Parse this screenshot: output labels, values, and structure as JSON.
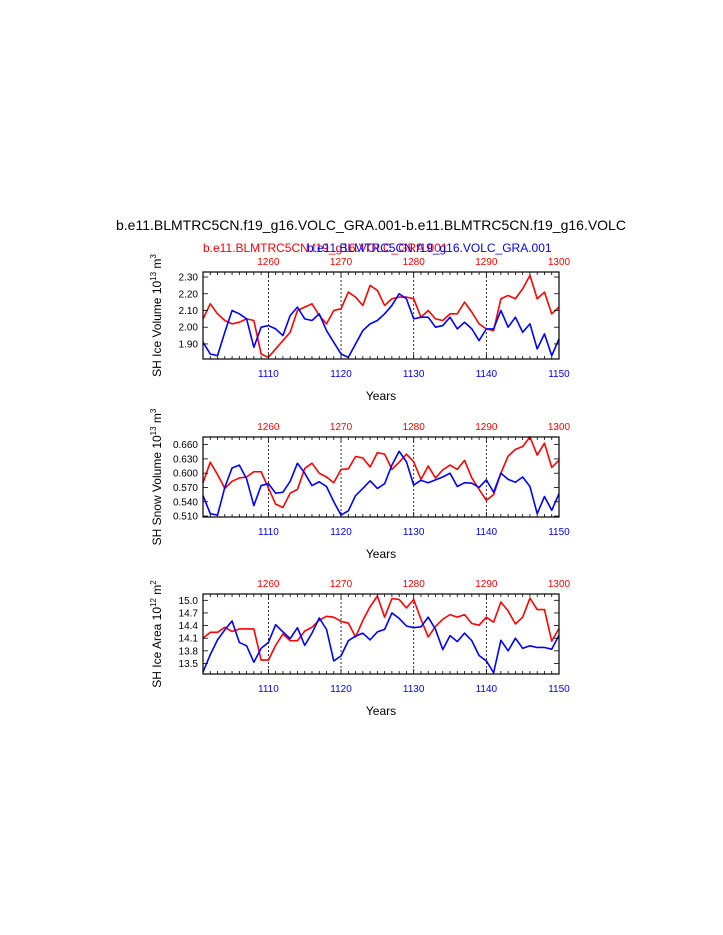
{
  "header": {
    "title": "b.e11.BLMTRC5CN.f19_g16.VOLC_GRA.001-b.e11.BLMTRC5CN.f19_g16.VOLC",
    "subtitle_red": "b.e11.BLMTRC5CN.f19_g16.VOLC_GRA.001",
    "subtitle_blue": "b.e11.BLMTRC5CN.f19_g16.VOLC_GRA.001"
  },
  "colors": {
    "red": "#ff0000",
    "blue": "#0000ff",
    "axis": "#000000"
  },
  "chart_data": [
    {
      "type": "line",
      "ylabel_main": "SH Ice Volume 10",
      "ylabel_exp": "13",
      "ylabel_unit": " m",
      "ylabel_unit_exp": "3",
      "xlabel": "Years",
      "bottom_axis": {
        "range": [
          1101,
          1150
        ],
        "ticks": [
          "1110",
          "1120",
          "1130",
          "1140",
          "1150"
        ]
      },
      "top_axis": {
        "range": [
          1251,
          1300
        ],
        "ticks": [
          "1260",
          "1270",
          "1280",
          "1290",
          "1300"
        ]
      },
      "ylim": [
        1.81,
        2.33
      ],
      "yticks": [
        "1.90",
        "2.00",
        "2.10",
        "2.20",
        "2.30"
      ],
      "ytick_values": [
        1.9,
        2.0,
        2.1,
        2.2,
        2.3
      ],
      "gridlines_at": [
        1110,
        1120,
        1130,
        1140
      ],
      "series": [
        {
          "color": "red",
          "values": [
            2.05,
            2.14,
            2.08,
            2.04,
            2.02,
            2.03,
            2.05,
            2.04,
            1.84,
            1.82,
            1.87,
            1.92,
            1.97,
            2.1,
            2.12,
            2.14,
            2.07,
            2.02,
            2.1,
            2.11,
            2.21,
            2.18,
            2.13,
            2.25,
            2.22,
            2.13,
            2.17,
            2.18,
            2.18,
            2.17,
            2.06,
            2.1,
            2.05,
            2.04,
            2.08,
            2.08,
            2.15,
            2.09,
            2.02,
            1.99,
            1.98,
            2.17,
            2.19,
            2.17,
            2.23,
            2.31,
            2.17,
            2.21,
            2.08,
            2.12
          ]
        },
        {
          "color": "blue",
          "values": [
            1.91,
            1.84,
            1.83,
            1.97,
            2.1,
            2.08,
            2.05,
            1.88,
            2.0,
            2.01,
            1.99,
            1.95,
            2.07,
            2.12,
            2.05,
            2.04,
            2.08,
            1.98,
            1.91,
            1.84,
            1.82,
            1.9,
            1.98,
            2.02,
            2.04,
            2.08,
            2.13,
            2.2,
            2.17,
            2.05,
            2.06,
            2.06,
            2.0,
            2.01,
            2.06,
            1.99,
            2.03,
            1.99,
            1.92,
            1.99,
            1.99,
            2.1,
            2.0,
            2.06,
            1.97,
            2.02,
            1.87,
            1.96,
            1.83,
            1.93
          ]
        }
      ]
    },
    {
      "type": "line",
      "ylabel_main": "SH Snow Volume 10",
      "ylabel_exp": "13",
      "ylabel_unit": " m",
      "ylabel_unit_exp": "3",
      "xlabel": "Years",
      "bottom_axis": {
        "range": [
          1101,
          1150
        ],
        "ticks": [
          "1110",
          "1120",
          "1130",
          "1140",
          "1150"
        ]
      },
      "top_axis": {
        "range": [
          1251,
          1300
        ],
        "ticks": [
          "1260",
          "1270",
          "1280",
          "1290",
          "1300"
        ]
      },
      "ylim": [
        0.508,
        0.676
      ],
      "yticks": [
        "0.510",
        "0.540",
        "0.570",
        "0.600",
        "0.630",
        "0.660"
      ],
      "ytick_values": [
        0.51,
        0.54,
        0.57,
        0.6,
        0.63,
        0.66
      ],
      "gridlines_at": [
        1110,
        1120,
        1130,
        1140
      ],
      "series": [
        {
          "color": "red",
          "values": [
            0.58,
            0.623,
            0.597,
            0.568,
            0.583,
            0.59,
            0.592,
            0.603,
            0.603,
            0.569,
            0.535,
            0.528,
            0.558,
            0.566,
            0.61,
            0.621,
            0.6,
            0.592,
            0.58,
            0.608,
            0.609,
            0.635,
            0.632,
            0.613,
            0.643,
            0.64,
            0.608,
            0.623,
            0.64,
            0.624,
            0.587,
            0.615,
            0.59,
            0.607,
            0.617,
            0.608,
            0.627,
            0.59,
            0.566,
            0.543,
            0.555,
            0.6,
            0.636,
            0.65,
            0.656,
            0.676,
            0.638,
            0.663,
            0.612,
            0.627
          ]
        },
        {
          "color": "blue",
          "values": [
            0.553,
            0.515,
            0.512,
            0.57,
            0.611,
            0.617,
            0.588,
            0.532,
            0.574,
            0.578,
            0.558,
            0.56,
            0.583,
            0.621,
            0.6,
            0.574,
            0.582,
            0.572,
            0.54,
            0.512,
            0.521,
            0.553,
            0.568,
            0.584,
            0.568,
            0.578,
            0.617,
            0.646,
            0.624,
            0.575,
            0.585,
            0.58,
            0.586,
            0.592,
            0.6,
            0.572,
            0.58,
            0.579,
            0.57,
            0.586,
            0.56,
            0.6,
            0.587,
            0.581,
            0.592,
            0.572,
            0.515,
            0.551,
            0.522,
            0.557
          ]
        }
      ]
    },
    {
      "type": "line",
      "ylabel_main": "SH Ice Area 10",
      "ylabel_exp": "12",
      "ylabel_unit": " m",
      "ylabel_unit_exp": "2",
      "xlabel": "Years",
      "bottom_axis": {
        "range": [
          1101,
          1150
        ],
        "ticks": [
          "1110",
          "1120",
          "1130",
          "1140",
          "1150"
        ]
      },
      "top_axis": {
        "range": [
          1251,
          1300
        ],
        "ticks": [
          "1260",
          "1270",
          "1280",
          "1290",
          "1300"
        ]
      },
      "ylim": [
        13.25,
        15.15
      ],
      "yticks": [
        "13.5",
        "13.8",
        "14.1",
        "14.4",
        "14.7",
        "15.0"
      ],
      "ytick_values": [
        13.5,
        13.8,
        14.1,
        14.4,
        14.7,
        15.0
      ],
      "gridlines_at": [
        1110,
        1120,
        1130,
        1140
      ],
      "series": [
        {
          "color": "red",
          "values": [
            14.1,
            14.24,
            14.24,
            14.36,
            14.26,
            14.32,
            14.32,
            14.32,
            13.58,
            13.58,
            13.93,
            14.2,
            14.04,
            14.04,
            14.27,
            14.36,
            14.53,
            14.62,
            14.6,
            14.5,
            14.46,
            14.13,
            14.52,
            14.85,
            15.1,
            14.6,
            15.04,
            15.02,
            14.82,
            15.02,
            14.55,
            14.13,
            14.38,
            14.55,
            14.66,
            14.6,
            14.66,
            14.45,
            14.41,
            14.6,
            14.48,
            14.96,
            14.75,
            14.44,
            14.6,
            15.05,
            14.78,
            14.78,
            14.03,
            14.33
          ]
        },
        {
          "color": "blue",
          "values": [
            13.3,
            13.71,
            14.06,
            14.3,
            14.51,
            14.0,
            13.92,
            13.53,
            13.86,
            14.0,
            14.42,
            14.25,
            14.09,
            14.35,
            13.93,
            14.22,
            14.58,
            14.31,
            13.56,
            13.68,
            14.04,
            14.15,
            14.22,
            14.06,
            14.25,
            14.31,
            14.7,
            14.57,
            14.39,
            14.35,
            14.37,
            14.6,
            14.31,
            13.83,
            14.16,
            14.02,
            14.22,
            14.04,
            13.69,
            13.56,
            13.28,
            14.05,
            13.8,
            14.1,
            13.86,
            13.92,
            13.88,
            13.88,
            13.84,
            14.17
          ]
        }
      ]
    }
  ]
}
